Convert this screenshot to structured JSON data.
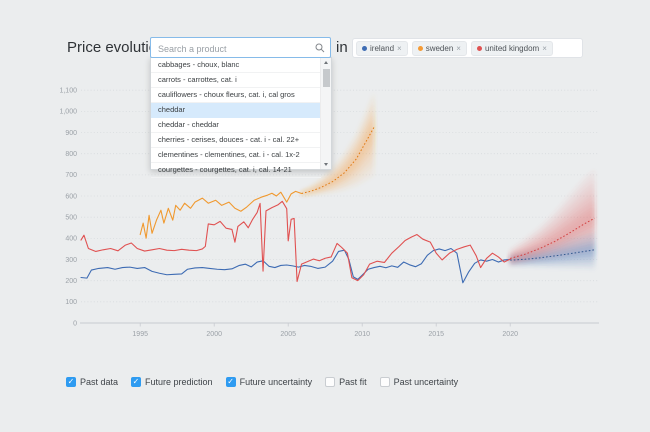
{
  "header": {
    "title": "Price evolution of",
    "search": {
      "placeholder": "Search a product"
    },
    "preposition": "in",
    "tags": [
      {
        "label": "ireland",
        "color": "#3e6cb3",
        "remove": "×"
      },
      {
        "label": "sweden",
        "color": "#f59b35",
        "remove": "×"
      },
      {
        "label": "united kingdom",
        "color": "#e05252",
        "remove": "×"
      }
    ]
  },
  "dropdown": {
    "items": [
      "cabbages - choux, blanc",
      "carrots - carrottes, cat. i",
      "cauliflowers - choux fleurs, cat. i, cal gros",
      "cheddar",
      "cheddar - cheddar",
      "cherries - cerises, douces - cat. i - cal. 22+",
      "clementines - clementines, cat. i - cal. 1x-2",
      "courgettes - courgettes, cat. i, cal. 14-21"
    ],
    "highlighted_index": 3
  },
  "controls": {
    "check_glyph": "✓",
    "checked_color": "#2e9bf1",
    "checkboxes": [
      {
        "label": "Past data",
        "checked": true
      },
      {
        "label": "Future prediction",
        "checked": true
      },
      {
        "label": "Future uncertainty",
        "checked": true
      },
      {
        "label": "Past fit",
        "checked": false
      },
      {
        "label": "Past uncertainty",
        "checked": false
      }
    ]
  },
  "chart_data": {
    "type": "line",
    "title": "",
    "xlabel": "",
    "ylabel": "",
    "grid": true,
    "x_axis": {
      "domain": [
        1991,
        2026
      ],
      "ticks": [
        1995,
        2000,
        2005,
        2010,
        2015,
        2020
      ]
    },
    "y_axis": {
      "domain": [
        0,
        1100
      ],
      "ticks": [
        0,
        100,
        200,
        300,
        400,
        500,
        600,
        700,
        800,
        900,
        1000,
        1100
      ]
    },
    "series": [
      {
        "name": "ireland",
        "color": "#3d6bb3",
        "past": [
          [
            1991,
            215
          ],
          [
            1991.4,
            212
          ],
          [
            1991.7,
            250
          ],
          [
            1992.2,
            258
          ],
          [
            1992.8,
            262
          ],
          [
            1993.3,
            254
          ],
          [
            1993.8,
            262
          ],
          [
            1994.3,
            264
          ],
          [
            1994.8,
            258
          ],
          [
            1995.3,
            262
          ],
          [
            1995.8,
            244
          ],
          [
            1996.3,
            235
          ],
          [
            1996.8,
            228
          ],
          [
            1997.3,
            230
          ],
          [
            1997.8,
            232
          ],
          [
            1998.2,
            254
          ],
          [
            1998.7,
            260
          ],
          [
            1999.2,
            262
          ],
          [
            1999.7,
            258
          ],
          [
            2000.2,
            254
          ],
          [
            2000.7,
            252
          ],
          [
            2001.2,
            256
          ],
          [
            2001.7,
            272
          ],
          [
            2002.1,
            278
          ],
          [
            2002.5,
            265
          ],
          [
            2002.9,
            288
          ],
          [
            2003.3,
            294
          ],
          [
            2003.7,
            268
          ],
          [
            2004.1,
            262
          ],
          [
            2004.5,
            272
          ],
          [
            2004.9,
            274
          ],
          [
            2005.3,
            270
          ],
          [
            2005.7,
            264
          ],
          [
            2006.1,
            272
          ],
          [
            2006.5,
            268
          ],
          [
            2007,
            258
          ],
          [
            2007.5,
            264
          ],
          [
            2008,
            292
          ],
          [
            2008.4,
            338
          ],
          [
            2008.8,
            344
          ],
          [
            2009.1,
            300
          ],
          [
            2009.4,
            218
          ],
          [
            2009.7,
            206
          ],
          [
            2010,
            226
          ],
          [
            2010.4,
            254
          ],
          [
            2010.8,
            262
          ],
          [
            2011.2,
            268
          ],
          [
            2011.6,
            261
          ],
          [
            2012,
            270
          ],
          [
            2012.4,
            263
          ],
          [
            2012.8,
            288
          ],
          [
            2013.2,
            275
          ],
          [
            2013.6,
            266
          ],
          [
            2014,
            280
          ],
          [
            2014.4,
            320
          ],
          [
            2014.8,
            342
          ],
          [
            2015.2,
            350
          ],
          [
            2015.6,
            342
          ],
          [
            2016,
            352
          ],
          [
            2016.4,
            330
          ],
          [
            2016.8,
            190
          ],
          [
            2017.2,
            242
          ],
          [
            2017.6,
            282
          ],
          [
            2018,
            298
          ],
          [
            2018.4,
            292
          ],
          [
            2018.8,
            300
          ],
          [
            2019.2,
            288
          ],
          [
            2019.6,
            298
          ],
          [
            2020,
            300
          ]
        ],
        "future": {
          "center_color": "#33598f",
          "center": [
            [
              2020,
              297
            ],
            [
              2021,
              301
            ],
            [
              2022,
              308
            ],
            [
              2023,
              317
            ],
            [
              2024,
              327
            ],
            [
              2025,
              338
            ],
            [
              2025.7,
              346
            ]
          ],
          "band": [
            [
              2020,
              270,
              322
            ],
            [
              2021,
              268,
              340
            ],
            [
              2022,
              265,
              360
            ],
            [
              2023,
              262,
              382
            ],
            [
              2024,
              260,
              405
            ],
            [
              2025,
              258,
              425
            ],
            [
              2025.7,
              256,
              438
            ]
          ]
        }
      },
      {
        "name": "sweden",
        "color": "#f0992f",
        "past": [
          [
            1995,
            418
          ],
          [
            1995.2,
            472
          ],
          [
            1995.4,
            401
          ],
          [
            1995.6,
            509
          ],
          [
            1995.8,
            424
          ],
          [
            1996.1,
            486
          ],
          [
            1996.4,
            533
          ],
          [
            1996.6,
            472
          ],
          [
            1996.9,
            542
          ],
          [
            1997.2,
            486
          ],
          [
            1997.4,
            556
          ],
          [
            1997.7,
            533
          ],
          [
            1998,
            566
          ],
          [
            1998.4,
            542
          ],
          [
            1998.7,
            571
          ],
          [
            1999.2,
            590
          ],
          [
            1999.6,
            566
          ],
          [
            2000.1,
            580
          ],
          [
            2000.5,
            556
          ],
          [
            2001,
            571
          ],
          [
            2001.4,
            542
          ],
          [
            2001.8,
            528
          ],
          [
            2002.2,
            548
          ],
          [
            2002.7,
            580
          ],
          [
            2003.2,
            595
          ],
          [
            2003.6,
            604
          ],
          [
            2003.9,
            613
          ],
          [
            2004.2,
            600
          ],
          [
            2004.5,
            618
          ],
          [
            2004.9,
            571
          ],
          [
            2005.2,
            610
          ],
          [
            2005.5,
            622
          ],
          [
            2005.9,
            612
          ]
        ],
        "future": {
          "center_color": "#e07b12",
          "center": [
            [
              2005.9,
              612
            ],
            [
              2006.5,
              622
            ],
            [
              2007.2,
              640
            ],
            [
              2008,
              668
            ],
            [
              2008.8,
              710
            ],
            [
              2009.6,
              775
            ],
            [
              2010.2,
              850
            ],
            [
              2010.8,
              925
            ]
          ],
          "band": [
            [
              2005.9,
              600,
              625
            ],
            [
              2006.5,
              605,
              645
            ],
            [
              2007.2,
              610,
              680
            ],
            [
              2008,
              618,
              730
            ],
            [
              2008.8,
              630,
              800
            ],
            [
              2009.6,
              650,
              890
            ],
            [
              2010.2,
              675,
              985
            ],
            [
              2010.8,
              700,
              1090
            ]
          ]
        }
      },
      {
        "name": "united kingdom",
        "color": "#e05151",
        "past": [
          [
            1991,
            392
          ],
          [
            1991.2,
            415
          ],
          [
            1991.5,
            352
          ],
          [
            1992,
            338
          ],
          [
            1992.5,
            346
          ],
          [
            1993,
            352
          ],
          [
            1993.5,
            341
          ],
          [
            1994,
            368
          ],
          [
            1994.4,
            378
          ],
          [
            1994.8,
            352
          ],
          [
            1995.3,
            340
          ],
          [
            1995.8,
            346
          ],
          [
            1996.3,
            352
          ],
          [
            1996.8,
            344
          ],
          [
            1997.3,
            342
          ],
          [
            1997.8,
            348
          ],
          [
            1998.3,
            344
          ],
          [
            1998.8,
            342
          ],
          [
            1999.2,
            350
          ],
          [
            1999.4,
            362
          ],
          [
            1999.6,
            468
          ],
          [
            2000,
            464
          ],
          [
            2000.4,
            480
          ],
          [
            2000.8,
            448
          ],
          [
            2001.2,
            442
          ],
          [
            2001.4,
            382
          ],
          [
            2001.6,
            456
          ],
          [
            2002,
            478
          ],
          [
            2002.3,
            450
          ],
          [
            2002.6,
            490
          ],
          [
            2002.9,
            522
          ],
          [
            2003.1,
            565
          ],
          [
            2003.3,
            245
          ],
          [
            2003.5,
            530
          ],
          [
            2003.9,
            545
          ],
          [
            2004.3,
            558
          ],
          [
            2004.6,
            575
          ],
          [
            2004.9,
            540
          ],
          [
            2005,
            388
          ],
          [
            2005.2,
            490
          ],
          [
            2005.4,
            494
          ],
          [
            2005.6,
            196
          ],
          [
            2005.9,
            278
          ],
          [
            2006.3,
            290
          ],
          [
            2006.7,
            302
          ],
          [
            2007.1,
            294
          ],
          [
            2007.5,
            306
          ],
          [
            2007.9,
            312
          ],
          [
            2008.3,
            376
          ],
          [
            2008.6,
            358
          ],
          [
            2009,
            330
          ],
          [
            2009.3,
            214
          ],
          [
            2009.7,
            200
          ],
          [
            2010.1,
            228
          ],
          [
            2010.5,
            278
          ],
          [
            2011,
            292
          ],
          [
            2011.5,
            286
          ],
          [
            2012,
            330
          ],
          [
            2012.5,
            362
          ],
          [
            2012.9,
            390
          ],
          [
            2013.3,
            405
          ],
          [
            2013.7,
            418
          ],
          [
            2014.1,
            396
          ],
          [
            2014.6,
            382
          ],
          [
            2015,
            330
          ],
          [
            2015.4,
            298
          ],
          [
            2015.9,
            330
          ],
          [
            2016.4,
            348
          ],
          [
            2016.9,
            360
          ],
          [
            2017.3,
            368
          ],
          [
            2017.7,
            318
          ],
          [
            2018,
            262
          ],
          [
            2018.4,
            305
          ],
          [
            2018.8,
            330
          ],
          [
            2019.2,
            312
          ],
          [
            2019.6,
            288
          ],
          [
            2020,
            302
          ]
        ],
        "future": {
          "center_color": "#d34040",
          "center": [
            [
              2020,
              305
            ],
            [
              2021,
              325
            ],
            [
              2022,
              352
            ],
            [
              2023,
              385
            ],
            [
              2024,
              425
            ],
            [
              2025,
              468
            ],
            [
              2025.7,
              495
            ]
          ],
          "band": [
            [
              2020,
              270,
              345
            ],
            [
              2021,
              285,
              395
            ],
            [
              2022,
              300,
              450
            ],
            [
              2023,
              315,
              520
            ],
            [
              2024,
              330,
              600
            ],
            [
              2025,
              345,
              680
            ],
            [
              2025.7,
              355,
              720
            ]
          ]
        }
      }
    ]
  }
}
